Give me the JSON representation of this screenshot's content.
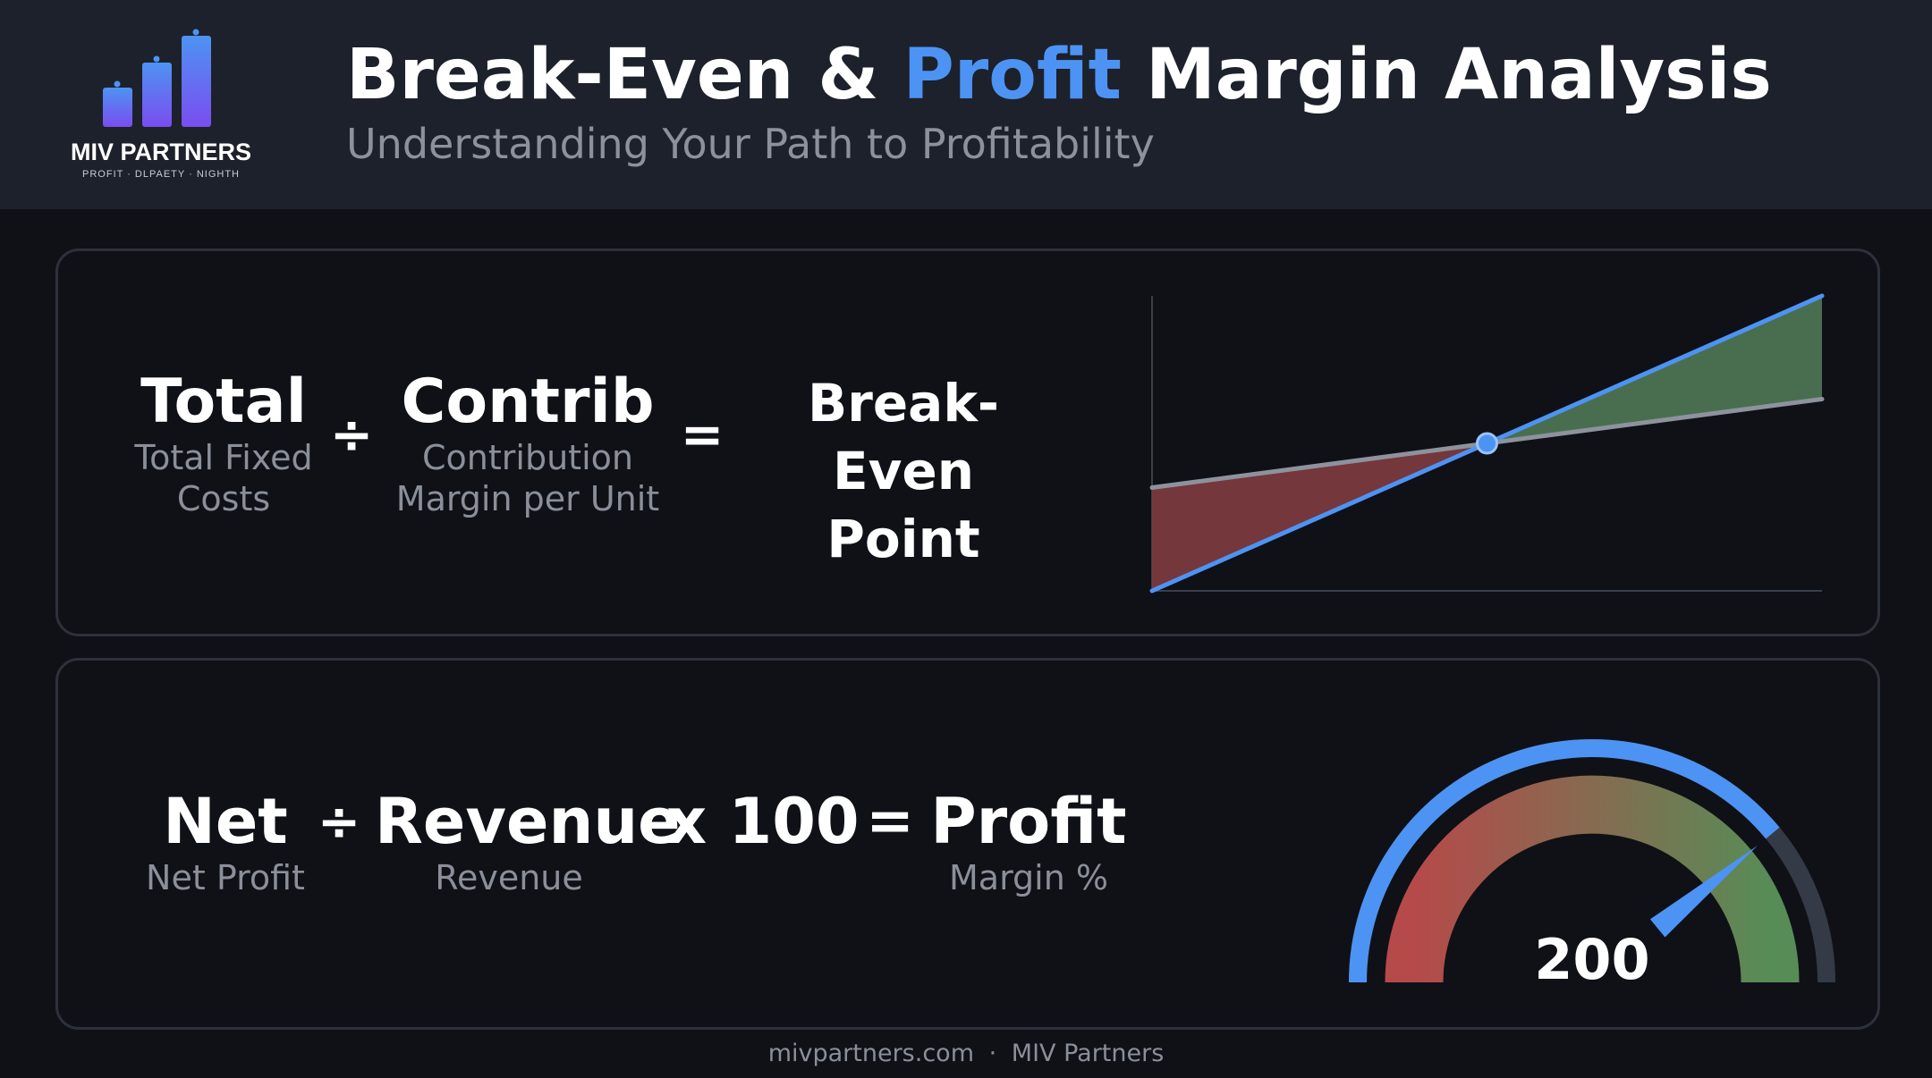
{
  "logo": {
    "name": "MIV PARTNERS",
    "tagline": "PROFIT · DLPAETY · NIGHTH"
  },
  "title": {
    "before": "Break-Even & ",
    "accent": "Profit",
    "after": " Margin Analysis",
    "subtitle": "Understanding Your Path to Profitability"
  },
  "break_even_formula": {
    "term1": {
      "label": "Total",
      "caption_line1": "Total Fixed",
      "caption_line2": "Costs"
    },
    "operator1": "÷",
    "term2": {
      "label": "Contrib",
      "caption_line1": "Contribution",
      "caption_line2": "Margin per Unit"
    },
    "operator2": "=",
    "result_line1": "Break-Even",
    "result_line2": "Point"
  },
  "profit_formula": {
    "term1": {
      "label": "Net",
      "caption": "Net Profit"
    },
    "operator1": "÷",
    "term2": {
      "label": "Revenue",
      "caption": "Revenue"
    },
    "multiplier": "x 100",
    "operator2": "=",
    "result": {
      "label": "Profit",
      "caption": "Margin %"
    }
  },
  "chart_data": {
    "type": "line",
    "title": "",
    "xlabel": "",
    "ylabel": "",
    "x": [
      0,
      1
    ],
    "series": [
      {
        "values": [
          0.0,
          1.0
        ]
      },
      {
        "values": [
          0.35,
          0.65
        ]
      }
    ],
    "break_even_point": [
      0.5,
      0.5
    ],
    "loss_fill_color": "#7a3a3e",
    "profit_fill_color": "#4c7452",
    "revenue_color": "#4d93f3",
    "cost_color": "#8d929c",
    "grid": false
  },
  "gauge": {
    "value": "200",
    "fill_fraction": 0.78,
    "arc_color": "#4d93f3",
    "track_color": "#343a46",
    "band_start_color": "#c8504f",
    "band_end_color": "#5f9a5d"
  },
  "footer": {
    "site": "mivpartners.com",
    "separator": "·",
    "company": "MIV Partners"
  }
}
